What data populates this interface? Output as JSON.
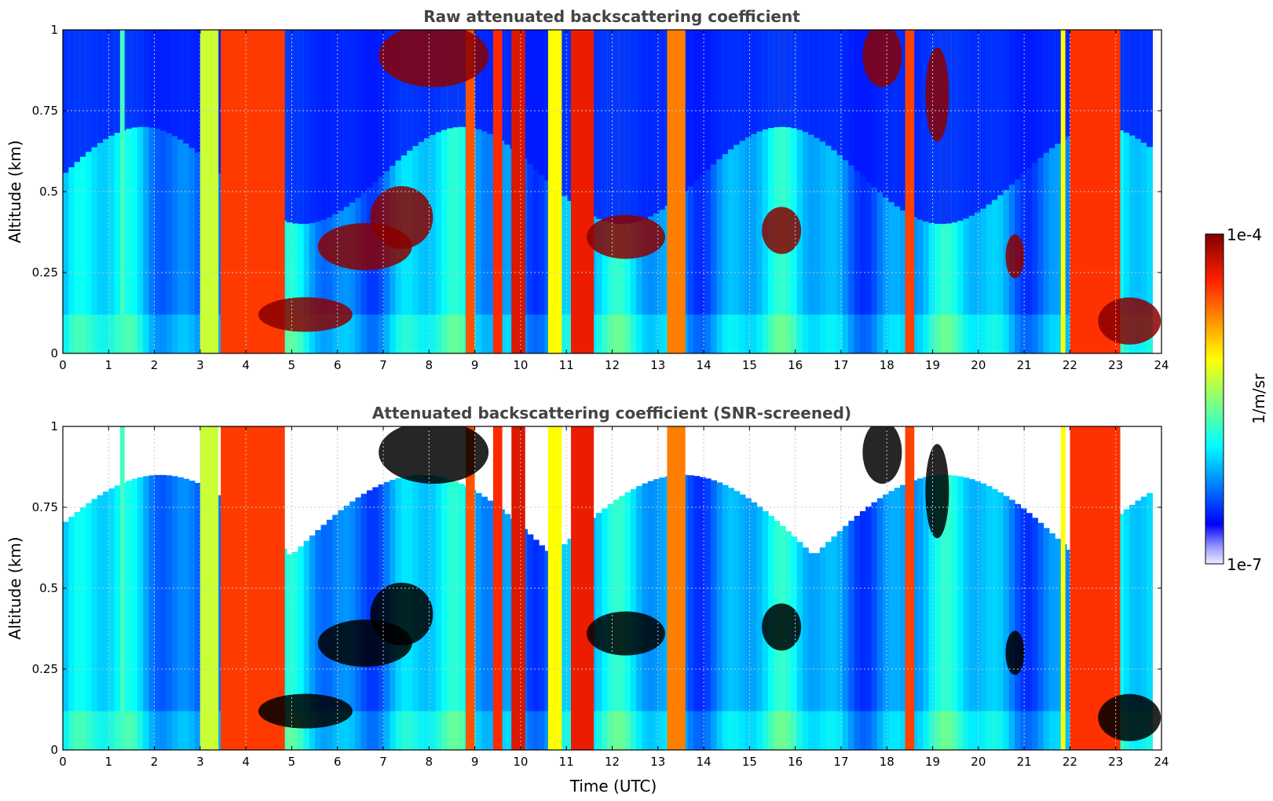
{
  "chart_data": [
    {
      "type": "heatmap",
      "title": "Raw attenuated backscattering coefficient",
      "xlabel": "",
      "ylabel": "Altitude (km)",
      "xlim": [
        0,
        24
      ],
      "ylim": [
        0,
        1
      ],
      "x_ticks": [
        0,
        1,
        2,
        3,
        4,
        5,
        6,
        7,
        8,
        9,
        10,
        11,
        12,
        13,
        14,
        15,
        16,
        17,
        18,
        19,
        20,
        21,
        22,
        23,
        24
      ],
      "y_ticks": [
        0,
        0.25,
        0.5,
        0.75,
        1
      ],
      "y_tick_labels": [
        "0",
        "0.25",
        "0.5",
        "0.75",
        "1"
      ],
      "data_end_hour": 23.8,
      "grid": true,
      "masked": false
    },
    {
      "type": "heatmap",
      "title": "Attenuated backscattering coefficient (SNR-screened)",
      "xlabel": "Time (UTC)",
      "ylabel": "Altitude (km)",
      "xlim": [
        0,
        24
      ],
      "ylim": [
        0,
        1
      ],
      "x_ticks": [
        0,
        1,
        2,
        3,
        4,
        5,
        6,
        7,
        8,
        9,
        10,
        11,
        12,
        13,
        14,
        15,
        16,
        17,
        18,
        19,
        20,
        21,
        22,
        23,
        24
      ],
      "y_ticks": [
        0,
        0.25,
        0.5,
        0.75,
        1
      ],
      "y_tick_labels": [
        "0",
        "0.25",
        "0.5",
        "0.75",
        "1"
      ],
      "data_end_hour": 23.8,
      "grid": true,
      "masked": true
    }
  ],
  "colorbar": {
    "label": "1/m/sr",
    "min_label": "1e-7",
    "max_label": "1e-4",
    "colormap": "jet",
    "scale": "log",
    "range": [
      1e-07,
      0.0001
    ]
  }
}
